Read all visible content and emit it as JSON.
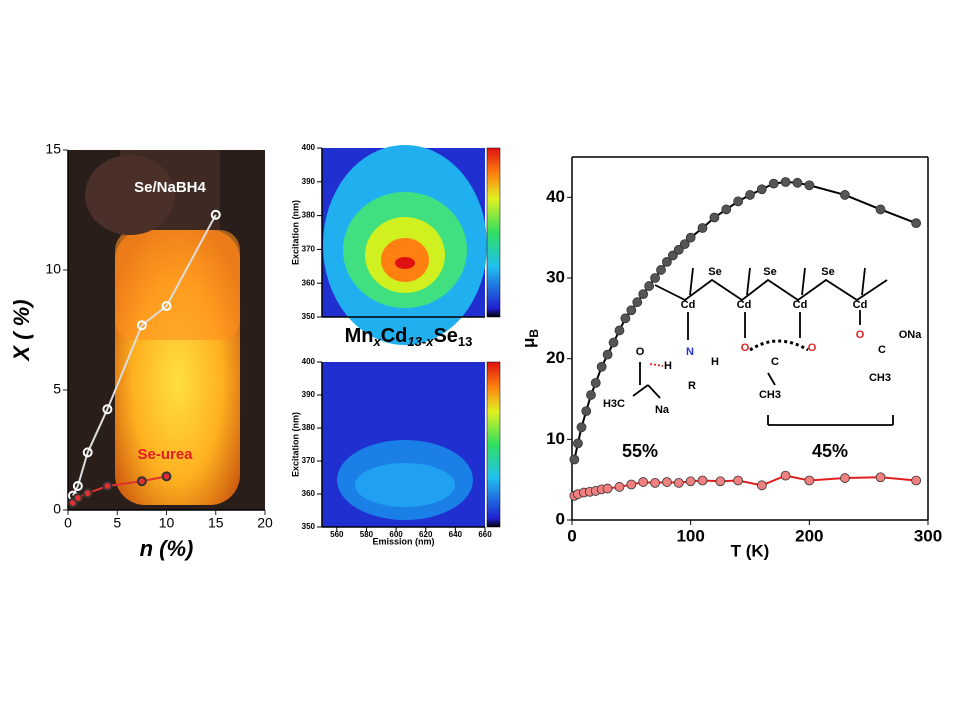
{
  "chart_data": [
    {
      "type": "scatter",
      "xlabel": "n (%)",
      "ylabel": "X ( %)",
      "xlim": [
        0,
        20
      ],
      "ylim": [
        0,
        15
      ],
      "xticks": [
        0,
        5,
        10,
        15,
        20
      ],
      "yticks": [
        0,
        5,
        10,
        15
      ],
      "annotations": [
        "Se/NaBH4",
        "Se-urea"
      ],
      "series": [
        {
          "color": "#dddddd",
          "x": [
            0.5,
            1,
            2,
            4,
            7.5,
            10,
            15
          ],
          "values": [
            0.6,
            1,
            2.4,
            4.2,
            7.7,
            8.5,
            12.3
          ]
        },
        {
          "color": "#e03030",
          "x": [
            0.5,
            1,
            2,
            4,
            7.5,
            10
          ],
          "values": [
            0.3,
            0.5,
            0.7,
            1,
            1.2,
            1.4
          ]
        }
      ]
    },
    {
      "type": "heatmap",
      "ylabel": "Excitation (nm)",
      "xlim": [
        550,
        660
      ],
      "ylim": [
        350,
        400
      ],
      "yticks": [
        350,
        360,
        370,
        380,
        390,
        400
      ]
    },
    {
      "type": "heatmap",
      "ylabel": "Excitation (nm)",
      "xlabel": "Emission (nm)",
      "title_parts": [
        "Mn",
        "x",
        "Cd",
        "13-x",
        "Se",
        "13"
      ],
      "xlim": [
        550,
        660
      ],
      "ylim": [
        350,
        400
      ],
      "xticks": [
        560,
        580,
        600,
        620,
        640,
        660
      ],
      "yticks": [
        350,
        360,
        370,
        380,
        390,
        400
      ]
    },
    {
      "type": "scatter",
      "xlabel": "T (K)",
      "ylabel_parts": [
        "μ",
        "B"
      ],
      "xlim": [
        0,
        300
      ],
      "ylim": [
        0,
        45
      ],
      "xticks": [
        0,
        100,
        200,
        300
      ],
      "yticks": [
        0,
        10,
        20,
        30,
        40
      ],
      "annotations": [
        "55%",
        "45%"
      ],
      "structure_labels": [
        "Se",
        "Se",
        "Se",
        "Cd",
        "Cd",
        "Cd",
        "Cd",
        "O",
        "H",
        "N",
        "H",
        "R",
        "H3C",
        "Na",
        "O",
        "O",
        "C",
        "CH3",
        "O",
        "C",
        "ONa",
        "CH3"
      ],
      "series": [
        {
          "color": "#555555",
          "x": [
            2,
            5,
            8,
            12,
            16,
            20,
            25,
            30,
            35,
            40,
            45,
            50,
            55,
            60,
            65,
            70,
            75,
            80,
            85,
            90,
            95,
            100,
            110,
            120,
            130,
            140,
            150,
            160,
            170,
            180,
            190,
            200,
            230,
            260,
            290
          ],
          "values": [
            7.5,
            9.5,
            11.5,
            13.5,
            15.5,
            17,
            19,
            20.5,
            22,
            23.5,
            25,
            26,
            27,
            28,
            29,
            30,
            31,
            32,
            32.8,
            33.5,
            34.2,
            35,
            36.2,
            37.5,
            38.5,
            39.5,
            40.3,
            41,
            41.7,
            41.9,
            41.8,
            41.5,
            40.3,
            38.5,
            36.8
          ]
        },
        {
          "color": "#f08080",
          "x": [
            2,
            5,
            10,
            15,
            20,
            25,
            30,
            40,
            50,
            60,
            70,
            80,
            90,
            100,
            110,
            125,
            140,
            160,
            180,
            200,
            230,
            260,
            290
          ],
          "values": [
            3,
            3.2,
            3.4,
            3.5,
            3.6,
            3.8,
            3.9,
            4.1,
            4.4,
            4.7,
            4.6,
            4.7,
            4.6,
            4.8,
            4.9,
            4.8,
            4.9,
            4.3,
            5.5,
            4.9,
            5.2,
            5.3,
            4.9
          ]
        }
      ]
    }
  ]
}
